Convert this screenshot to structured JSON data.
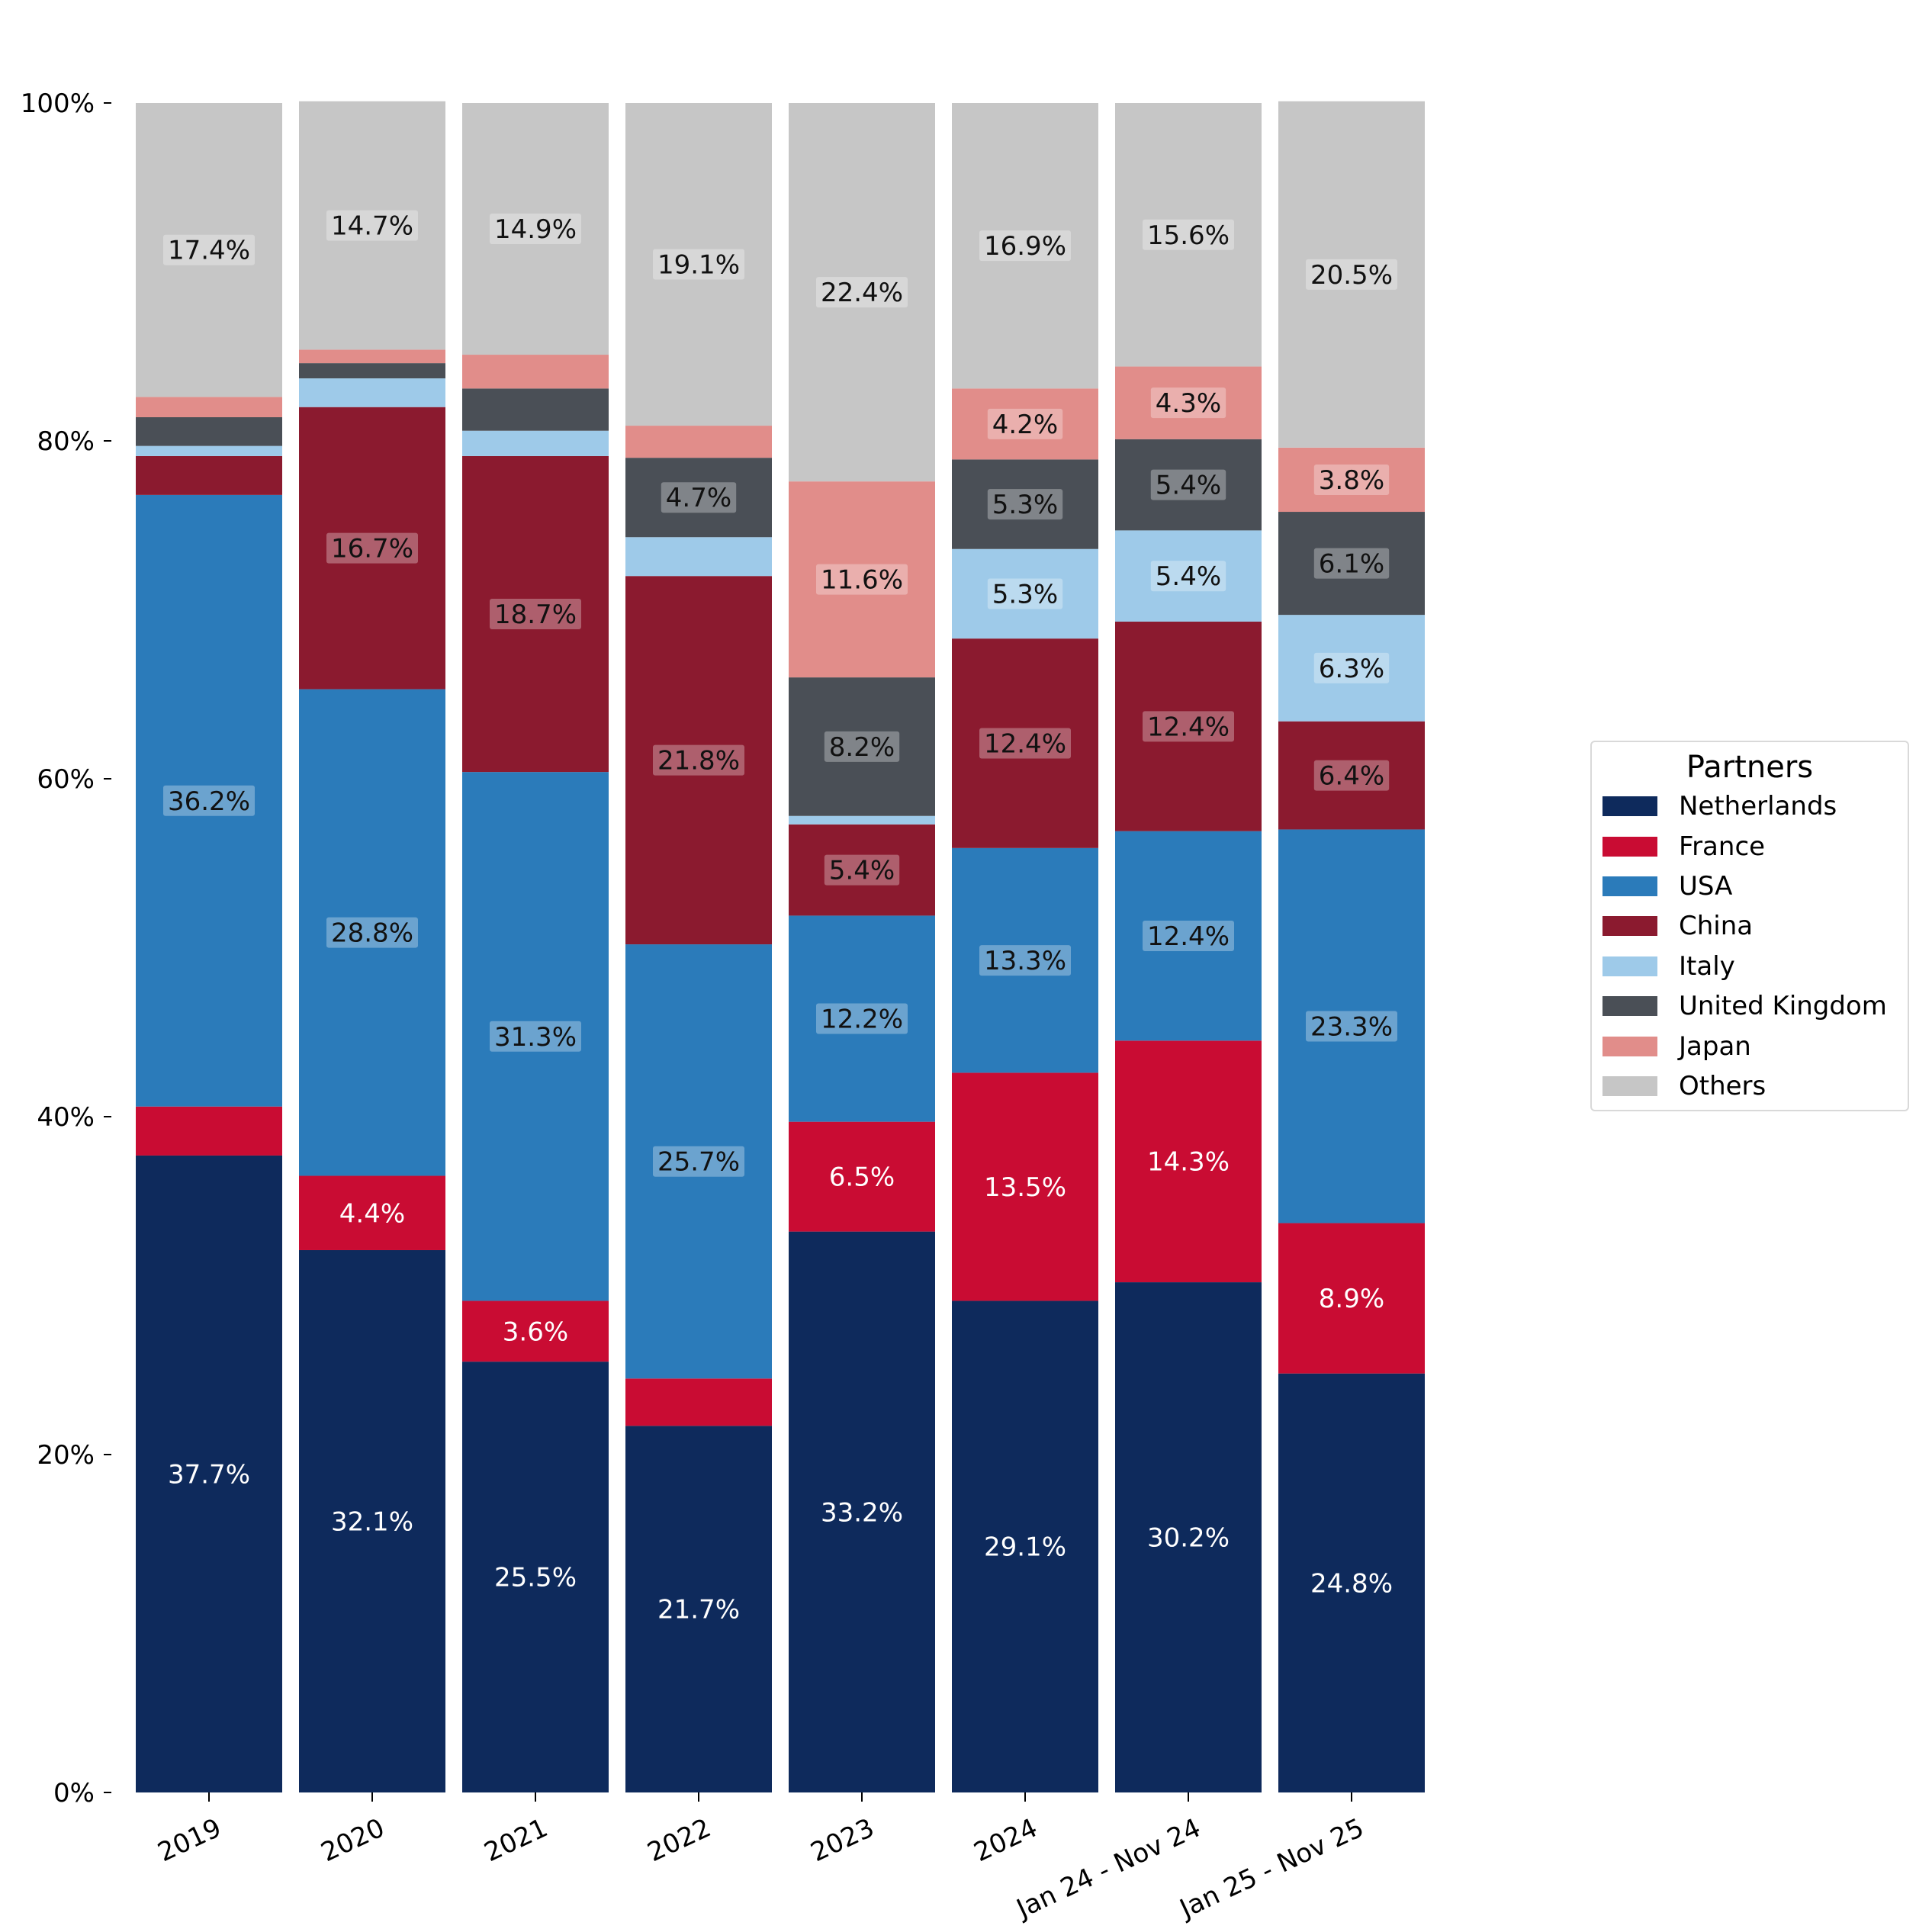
{
  "chart_data": {
    "type": "bar",
    "stacked": true,
    "normalized_percent": true,
    "categories": [
      "2019",
      "2020",
      "2021",
      "2022",
      "2023",
      "2024",
      "Jan 24 - Nov 24",
      "Jan 25 - Nov 25"
    ],
    "y_ticks": [
      "0%",
      "20%",
      "40%",
      "60%",
      "80%",
      "100%"
    ],
    "ylim": [
      0,
      100
    ],
    "grid": false,
    "legend_title": "Partners",
    "legend_placement": "center-right",
    "series": [
      {
        "name": "Netherlands",
        "color": "#0e2a5c",
        "label_color": "#ffffff",
        "label_box": false,
        "values": [
          37.7,
          32.1,
          25.5,
          21.7,
          33.2,
          29.1,
          30.2,
          24.8
        ],
        "labels": [
          "37.7%",
          "32.1%",
          "25.5%",
          "21.7%",
          "33.2%",
          "29.1%",
          "30.2%",
          "24.8%"
        ]
      },
      {
        "name": "France",
        "color": "#c90c33",
        "label_color": "#ffffff",
        "label_box": false,
        "values": [
          2.9,
          4.4,
          3.6,
          2.8,
          6.5,
          13.5,
          14.3,
          8.9
        ],
        "labels": [
          "",
          "4.4%",
          "3.6%",
          "",
          "6.5%",
          "13.5%",
          "14.3%",
          "8.9%"
        ]
      },
      {
        "name": "USA",
        "color": "#2b7bba",
        "label_color": "#111111",
        "label_box": true,
        "values": [
          36.2,
          28.8,
          31.3,
          25.7,
          12.2,
          13.3,
          12.4,
          23.3
        ],
        "labels": [
          "36.2%",
          "28.8%",
          "31.3%",
          "25.7%",
          "12.2%",
          "13.3%",
          "12.4%",
          "23.3%"
        ]
      },
      {
        "name": "China",
        "color": "#8b1a2f",
        "label_color": "#111111",
        "label_box": true,
        "values": [
          2.3,
          16.7,
          18.7,
          21.8,
          5.4,
          12.4,
          12.4,
          6.4
        ],
        "labels": [
          "",
          "16.7%",
          "18.7%",
          "21.8%",
          "5.4%",
          "12.4%",
          "12.4%",
          "6.4%"
        ]
      },
      {
        "name": "Italy",
        "color": "#9ecae9",
        "label_color": "#111111",
        "label_box": true,
        "values": [
          0.6,
          1.7,
          1.5,
          2.3,
          0.5,
          5.3,
          5.4,
          6.3
        ],
        "labels": [
          "",
          "",
          "",
          "",
          "",
          "5.3%",
          "5.4%",
          "6.3%"
        ]
      },
      {
        "name": "United Kingdom",
        "color": "#4a4f56",
        "label_color": "#111111",
        "label_box": true,
        "values": [
          1.7,
          0.9,
          2.5,
          4.7,
          8.2,
          5.3,
          5.4,
          6.1
        ],
        "labels": [
          "",
          "",
          "",
          "4.7%",
          "8.2%",
          "5.3%",
          "5.4%",
          "6.1%"
        ]
      },
      {
        "name": "Japan",
        "color": "#e18d8a",
        "label_color": "#111111",
        "label_box": true,
        "values": [
          1.2,
          0.8,
          2.0,
          1.9,
          11.6,
          4.2,
          4.3,
          3.8
        ],
        "labels": [
          "",
          "",
          "",
          "",
          "11.6%",
          "4.2%",
          "4.3%",
          "3.8%"
        ]
      },
      {
        "name": "Others",
        "color": "#c6c6c6",
        "label_color": "#111111",
        "label_box": true,
        "values": [
          17.4,
          14.7,
          14.9,
          19.1,
          22.4,
          16.9,
          15.6,
          20.5
        ],
        "labels": [
          "17.4%",
          "14.7%",
          "14.9%",
          "19.1%",
          "22.4%",
          "16.9%",
          "15.6%",
          "20.5%"
        ]
      }
    ]
  }
}
